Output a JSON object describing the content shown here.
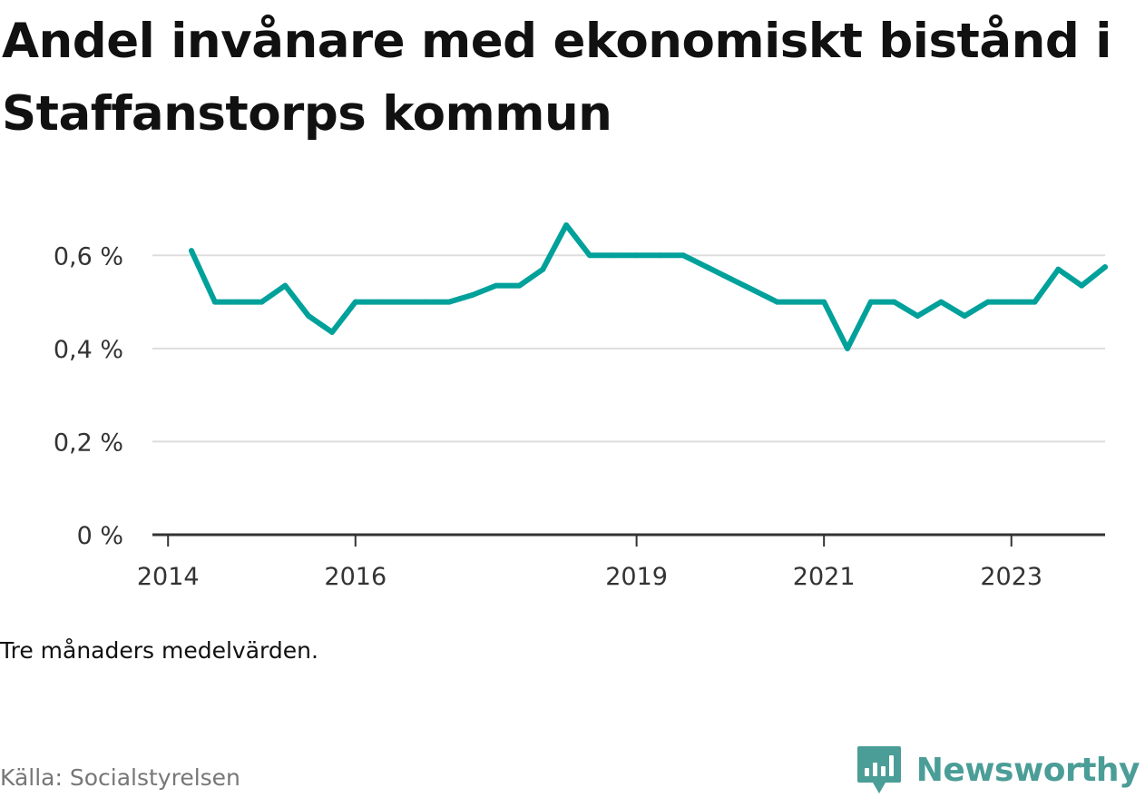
{
  "title": "Andel invånare med ekonomiskt bistånd i Staffanstorps kommun",
  "note": "Tre månaders medelvärden.",
  "source": "Källa: Socialstyrelsen",
  "brand": {
    "name": "Newsworthy",
    "color": "#4b9d97",
    "icon": "newsworthy-logo-icon"
  },
  "chart_data": {
    "type": "line",
    "title": "Andel invånare med ekonomiskt bistånd i Staffanstorps kommun",
    "xlabel": "",
    "ylabel": "",
    "line_color": "#00a19a",
    "grid": true,
    "ylim": [
      0,
      0.7
    ],
    "y_ticks": [
      {
        "value": 0,
        "label": "0 %"
      },
      {
        "value": 0.2,
        "label": "0,2 %"
      },
      {
        "value": 0.4,
        "label": "0,4 %"
      },
      {
        "value": 0.6,
        "label": "0,6 %"
      }
    ],
    "xlim": [
      "2013-11",
      "2024-01"
    ],
    "x_ticks": [
      {
        "date": "2014-01",
        "label": "2014"
      },
      {
        "date": "2016-01",
        "label": "2016"
      },
      {
        "date": "2019-01",
        "label": "2019"
      },
      {
        "date": "2021-01",
        "label": "2021"
      },
      {
        "date": "2023-01",
        "label": "2023"
      }
    ],
    "series": [
      {
        "points": [
          {
            "date": "2014-04",
            "value": 0.61
          },
          {
            "date": "2014-07",
            "value": 0.5
          },
          {
            "date": "2014-10",
            "value": 0.5
          },
          {
            "date": "2015-01",
            "value": 0.5
          },
          {
            "date": "2015-04",
            "value": 0.535
          },
          {
            "date": "2015-07",
            "value": 0.47
          },
          {
            "date": "2015-10",
            "value": 0.435
          },
          {
            "date": "2016-01",
            "value": 0.5
          },
          {
            "date": "2016-04",
            "value": 0.5
          },
          {
            "date": "2016-07",
            "value": 0.5
          },
          {
            "date": "2016-10",
            "value": 0.5
          },
          {
            "date": "2017-01",
            "value": 0.5
          },
          {
            "date": "2017-04",
            "value": 0.515
          },
          {
            "date": "2017-07",
            "value": 0.535
          },
          {
            "date": "2017-10",
            "value": 0.535
          },
          {
            "date": "2018-01",
            "value": 0.57
          },
          {
            "date": "2018-04",
            "value": 0.665
          },
          {
            "date": "2018-07",
            "value": 0.6
          },
          {
            "date": "2018-10",
            "value": 0.6
          },
          {
            "date": "2019-01",
            "value": 0.6
          },
          {
            "date": "2019-04",
            "value": 0.6
          },
          {
            "date": "2019-07",
            "value": 0.6
          },
          {
            "date": "2019-10",
            "value": 0.575
          },
          {
            "date": "2020-01",
            "value": 0.55
          },
          {
            "date": "2020-04",
            "value": 0.525
          },
          {
            "date": "2020-07",
            "value": 0.5
          },
          {
            "date": "2020-10",
            "value": 0.5
          },
          {
            "date": "2021-01",
            "value": 0.5
          },
          {
            "date": "2021-04",
            "value": 0.4
          },
          {
            "date": "2021-07",
            "value": 0.5
          },
          {
            "date": "2021-10",
            "value": 0.5
          },
          {
            "date": "2022-01",
            "value": 0.47
          },
          {
            "date": "2022-04",
            "value": 0.5
          },
          {
            "date": "2022-07",
            "value": 0.47
          },
          {
            "date": "2022-10",
            "value": 0.5
          },
          {
            "date": "2023-01",
            "value": 0.5
          },
          {
            "date": "2023-04",
            "value": 0.5
          },
          {
            "date": "2023-07",
            "value": 0.57
          },
          {
            "date": "2023-10",
            "value": 0.535
          },
          {
            "date": "2024-01",
            "value": 0.575
          }
        ]
      }
    ]
  }
}
